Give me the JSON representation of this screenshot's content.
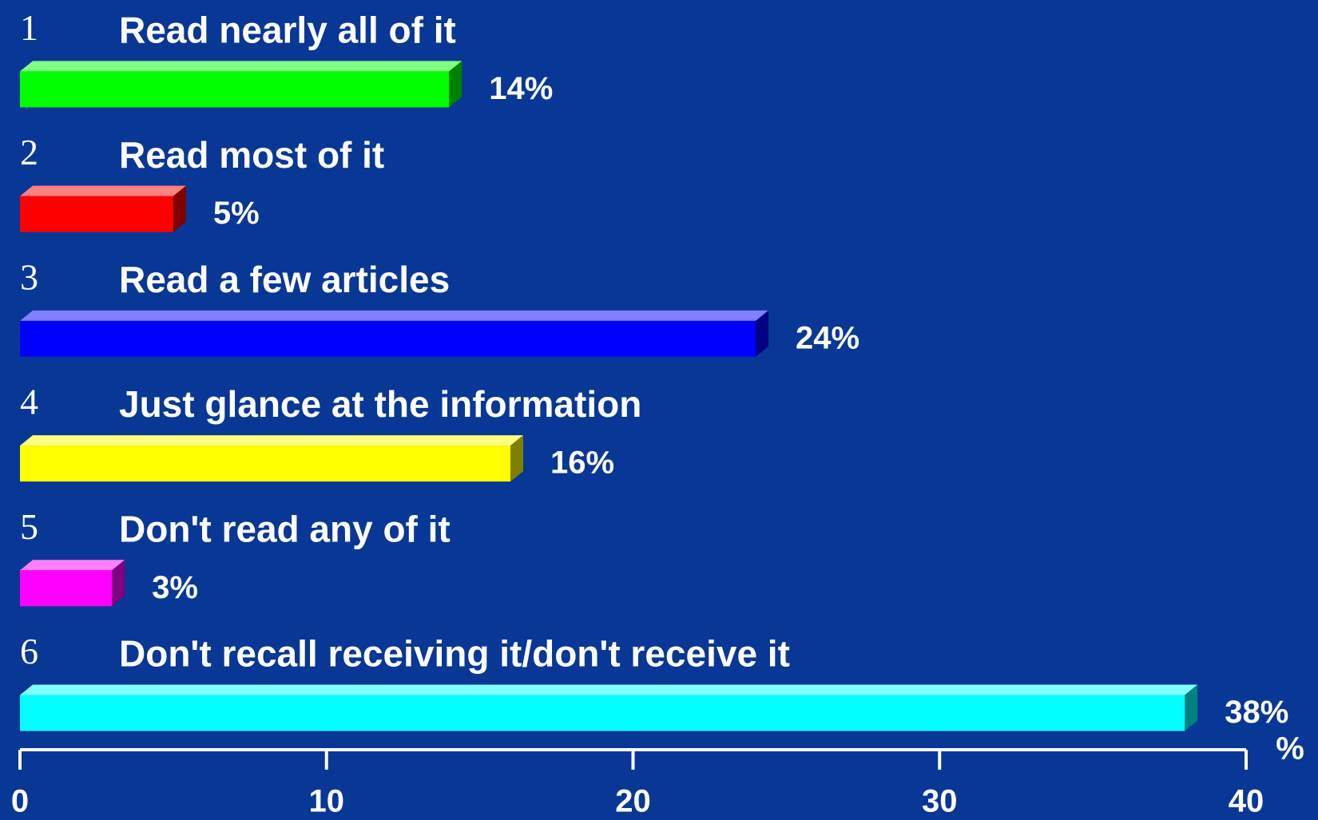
{
  "chart_data": {
    "type": "bar3d_horizontal",
    "category_numbers": [
      "1",
      "2",
      "3",
      "4",
      "5",
      "6"
    ],
    "categories": [
      "Read nearly all of it",
      "Read most of it",
      "Read a few articles",
      "Just glance at the information",
      "Don't read any of it",
      "Don't recall receiving it/don't receive it"
    ],
    "values": [
      14,
      5,
      24,
      16,
      3,
      38
    ],
    "value_labels": [
      "14%",
      "5%",
      "24%",
      "16%",
      "3%",
      "38%"
    ],
    "colors": [
      "#00ff00",
      "#ff0000",
      "#0000ff",
      "#ffff00",
      "#ff00ff",
      "#00ffff"
    ],
    "xlim": [
      0,
      40
    ],
    "xticks": [
      0,
      10,
      20,
      30,
      40
    ],
    "xlabel": "%"
  }
}
